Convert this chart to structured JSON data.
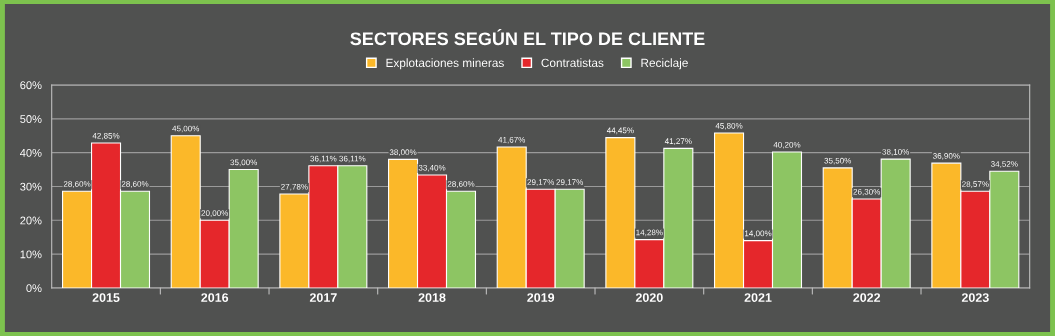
{
  "chart_data": {
    "type": "bar",
    "title": "SECTORES SEGÚN EL TIPO DE CLIENTE",
    "categories": [
      "2015",
      "2016",
      "2017",
      "2018",
      "2019",
      "2020",
      "2021",
      "2022",
      "2023"
    ],
    "series": [
      {
        "name": "Explotaciones mineras",
        "color": "#fbb829",
        "values": [
          28.6,
          45.0,
          27.78,
          38.0,
          41.67,
          44.45,
          45.8,
          35.5,
          36.9
        ],
        "value_labels": [
          "28,60%",
          "45,00%",
          "27,78%",
          "38,00%",
          "41,67%",
          "44,45%",
          "45,80%",
          "35,50%",
          "36,90%"
        ]
      },
      {
        "name": "Contratistas",
        "color": "#e5272b",
        "values": [
          42.85,
          20.0,
          36.11,
          33.4,
          29.17,
          14.28,
          14.0,
          26.3,
          28.57
        ],
        "value_labels": [
          "42,85%",
          "20,00%",
          "36,11%",
          "33,40%",
          "29,17%",
          "14,28%",
          "14,00%",
          "26,30%",
          "28,57%"
        ]
      },
      {
        "name": "Reciclaje",
        "color": "#8dc563",
        "values": [
          28.6,
          35.0,
          36.11,
          28.6,
          29.17,
          41.27,
          40.2,
          38.1,
          34.52
        ],
        "value_labels": [
          "28,60%",
          "35,00%",
          "36,11%",
          "28,60%",
          "29,17%",
          "41,27%",
          "40,20%",
          "38,10%",
          "34,52%"
        ]
      }
    ],
    "ylim": [
      0,
      60
    ],
    "yticks": [
      {
        "value": 0,
        "label": "0%"
      },
      {
        "value": 10,
        "label": "10%"
      },
      {
        "value": 20,
        "label": "20%"
      },
      {
        "value": 30,
        "label": "30%"
      },
      {
        "value": 40,
        "label": "40%"
      },
      {
        "value": 50,
        "label": "50%"
      },
      {
        "value": 60,
        "label": "60%"
      }
    ],
    "grid": "y",
    "legend": "top"
  }
}
